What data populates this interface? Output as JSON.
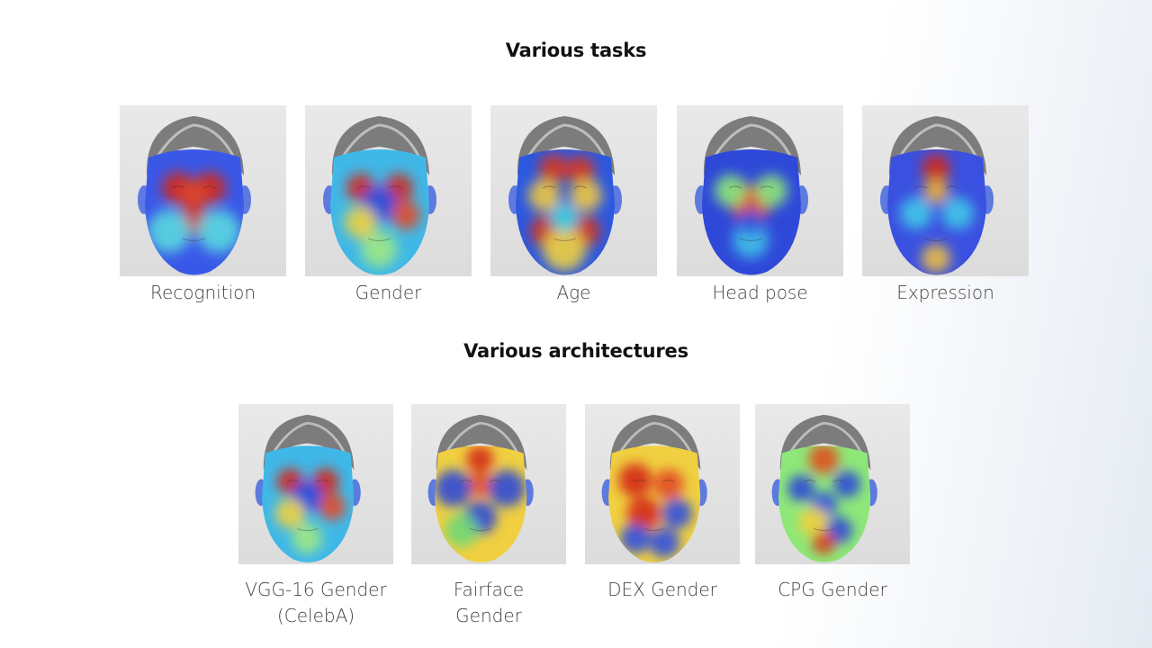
{
  "sections": {
    "tasks_title": "Various tasks",
    "architectures_title": "Various architectures"
  },
  "tasks": [
    {
      "label": "Recognition",
      "heatmap": "recognition"
    },
    {
      "label": "Gender",
      "heatmap": "gender"
    },
    {
      "label": "Age",
      "heatmap": "age"
    },
    {
      "label": "Head pose",
      "heatmap": "headpose"
    },
    {
      "label": "Expression",
      "heatmap": "expression"
    }
  ],
  "architectures": [
    {
      "label_line1": "VGG-16 Gender",
      "label_line2": "(CelebA)",
      "heatmap": "vgg"
    },
    {
      "label_line1": "Fairface",
      "label_line2": "Gender",
      "heatmap": "fairface"
    },
    {
      "label_line1": "DEX Gender",
      "label_line2": "",
      "heatmap": "dex"
    },
    {
      "label_line1": "CPG Gender",
      "label_line2": "",
      "heatmap": "cpg"
    }
  ]
}
